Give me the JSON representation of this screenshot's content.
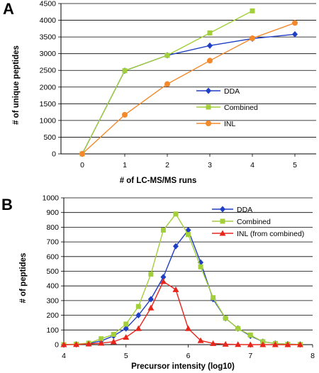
{
  "chart_data": [
    {
      "panel": "A",
      "type": "line",
      "xlabel": "# of LC-MS/MS runs",
      "ylabel": "# of unique peptides",
      "xlim": [
        -0.5,
        5.5
      ],
      "ylim": [
        0,
        4500
      ],
      "xticks": [
        0,
        1,
        2,
        3,
        4,
        5
      ],
      "yticks": [
        0,
        500,
        1000,
        1500,
        2000,
        2500,
        3000,
        3500,
        4000,
        4500
      ],
      "grid": "horizontal",
      "legend": "right",
      "series": [
        {
          "name": "DDA",
          "marker": "diamond",
          "color": "#1f3fc4",
          "x": [
            0,
            1,
            2,
            3,
            4,
            5
          ],
          "y": [
            0,
            2490,
            2950,
            3240,
            3450,
            3580
          ]
        },
        {
          "name": "Combined",
          "marker": "square",
          "color": "#a3cf3a",
          "x": [
            0,
            1,
            2,
            3,
            4
          ],
          "y": [
            0,
            2490,
            2950,
            3620,
            4280
          ]
        },
        {
          "name": "INL",
          "marker": "circle",
          "color": "#f28a2b",
          "x": [
            0,
            1,
            2,
            3,
            4,
            5
          ],
          "y": [
            0,
            1170,
            2090,
            2790,
            3460,
            3920
          ]
        }
      ]
    },
    {
      "panel": "B",
      "type": "line",
      "xlabel": "Precursor intensity (log10)",
      "ylabel": "# of peptides",
      "xlim": [
        4,
        8
      ],
      "ylim": [
        0,
        1000
      ],
      "xticks": [
        4,
        5,
        6,
        7,
        8
      ],
      "yticks": [
        0,
        100,
        200,
        300,
        400,
        500,
        600,
        700,
        800,
        900,
        1000
      ],
      "grid": "horizontal",
      "legend": "top-right",
      "series": [
        {
          "name": "DDA",
          "marker": "diamond",
          "color": "#1f3fc4",
          "x": [
            4.0,
            4.2,
            4.4,
            4.6,
            4.8,
            5.0,
            5.2,
            5.4,
            5.6,
            5.8,
            6.0,
            6.2,
            6.4,
            6.6,
            6.8,
            7.0,
            7.2,
            7.4,
            7.6,
            7.8
          ],
          "y": [
            0,
            2,
            8,
            25,
            60,
            110,
            200,
            310,
            460,
            670,
            780,
            560,
            310,
            180,
            110,
            60,
            20,
            8,
            3,
            1
          ]
        },
        {
          "name": "Combined",
          "marker": "square",
          "color": "#a3cf3a",
          "x": [
            4.0,
            4.2,
            4.4,
            4.6,
            4.8,
            5.0,
            5.2,
            5.4,
            5.6,
            5.8,
            6.0,
            6.2,
            6.4,
            6.6,
            6.8,
            7.0,
            7.2,
            7.4,
            7.6,
            7.8
          ],
          "y": [
            0,
            3,
            10,
            40,
            70,
            140,
            260,
            480,
            780,
            890,
            750,
            530,
            320,
            180,
            110,
            65,
            20,
            8,
            3,
            1
          ]
        },
        {
          "name": "INL (from combined)",
          "marker": "triangle",
          "color": "#e8251b",
          "x": [
            4.0,
            4.2,
            4.4,
            4.6,
            4.8,
            5.0,
            5.2,
            5.4,
            5.6,
            5.8,
            6.0,
            6.2,
            6.4,
            6.6,
            6.8,
            7.0,
            7.2,
            7.4,
            7.6,
            7.8
          ],
          "y": [
            0,
            1,
            5,
            10,
            20,
            50,
            110,
            250,
            430,
            375,
            110,
            28,
            8,
            3,
            1,
            0,
            0,
            0,
            0,
            0
          ]
        }
      ]
    }
  ]
}
